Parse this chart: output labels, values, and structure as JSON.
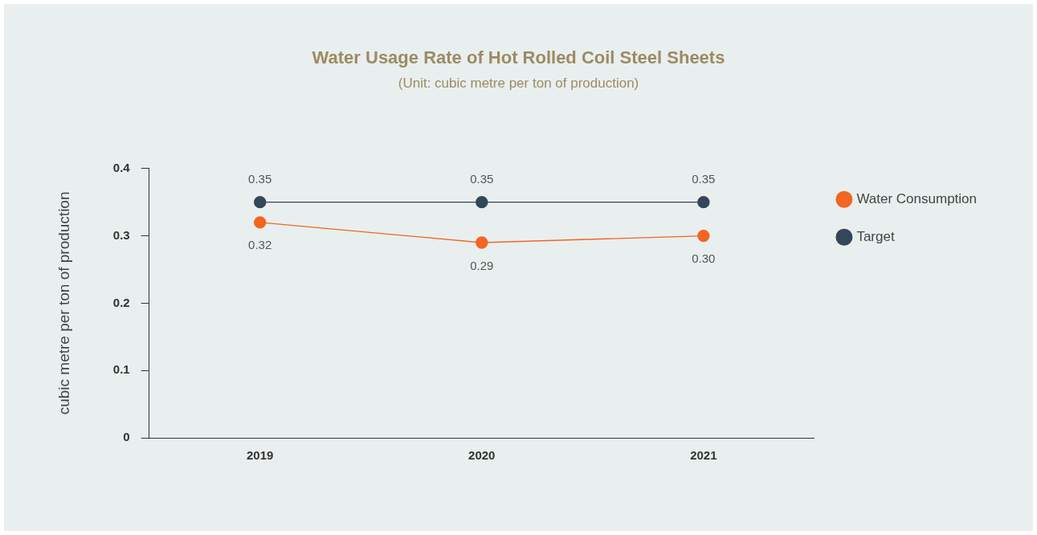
{
  "chart_data": {
    "type": "line",
    "title": "Water Usage Rate of Hot Rolled Coil Steel Sheets",
    "subtitle": "(Unit: cubic metre per ton of production)",
    "ylabel": "cubic metre per ton of production",
    "categories": [
      "2019",
      "2020",
      "2021"
    ],
    "series": [
      {
        "name": "Water Consumption",
        "color": "#f26522",
        "values": [
          0.32,
          0.29,
          0.3
        ],
        "value_labels": [
          "0.32",
          "0.29",
          "0.30"
        ]
      },
      {
        "name": "Target",
        "color": "#34465a",
        "values": [
          0.35,
          0.35,
          0.35
        ],
        "value_labels": [
          "0.35",
          "0.35",
          "0.35"
        ]
      }
    ],
    "ylim": [
      0,
      0.4
    ],
    "yticks": [
      0,
      0.1,
      0.2,
      0.3,
      0.4
    ],
    "grid": false,
    "legend": "right",
    "marker": "circle",
    "line_style": "solid"
  }
}
